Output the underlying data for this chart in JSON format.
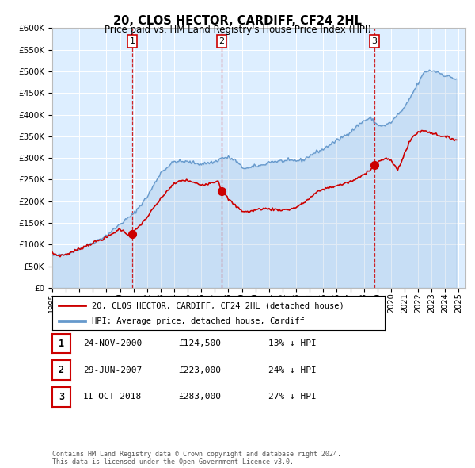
{
  "title": "20, CLOS HECTOR, CARDIFF, CF24 2HL",
  "subtitle": "Price paid vs. HM Land Registry's House Price Index (HPI)",
  "hpi_color": "#6699cc",
  "price_color": "#cc0000",
  "bg_color": "#ddeeff",
  "ylim": [
    0,
    600000
  ],
  "yticks": [
    0,
    50000,
    100000,
    150000,
    200000,
    250000,
    300000,
    350000,
    400000,
    450000,
    500000,
    550000,
    600000
  ],
  "ytick_labels": [
    "£0",
    "£50K",
    "£100K",
    "£150K",
    "£200K",
    "£250K",
    "£300K",
    "£350K",
    "£400K",
    "£450K",
    "£500K",
    "£550K",
    "£600K"
  ],
  "sale_dates": [
    2000.9,
    2007.5,
    2018.78
  ],
  "sale_prices": [
    124500,
    223000,
    283000
  ],
  "sale_labels": [
    "1",
    "2",
    "3"
  ],
  "legend_line1": "20, CLOS HECTOR, CARDIFF, CF24 2HL (detached house)",
  "legend_line2": "HPI: Average price, detached house, Cardiff",
  "table_rows": [
    {
      "num": "1",
      "date": "24-NOV-2000",
      "price": "£124,500",
      "pct": "13% ↓ HPI"
    },
    {
      "num": "2",
      "date": "29-JUN-2007",
      "price": "£223,000",
      "pct": "24% ↓ HPI"
    },
    {
      "num": "3",
      "date": "11-OCT-2018",
      "price": "£283,000",
      "pct": "27% ↓ HPI"
    }
  ],
  "footer": "Contains HM Land Registry data © Crown copyright and database right 2024.\nThis data is licensed under the Open Government Licence v3.0."
}
